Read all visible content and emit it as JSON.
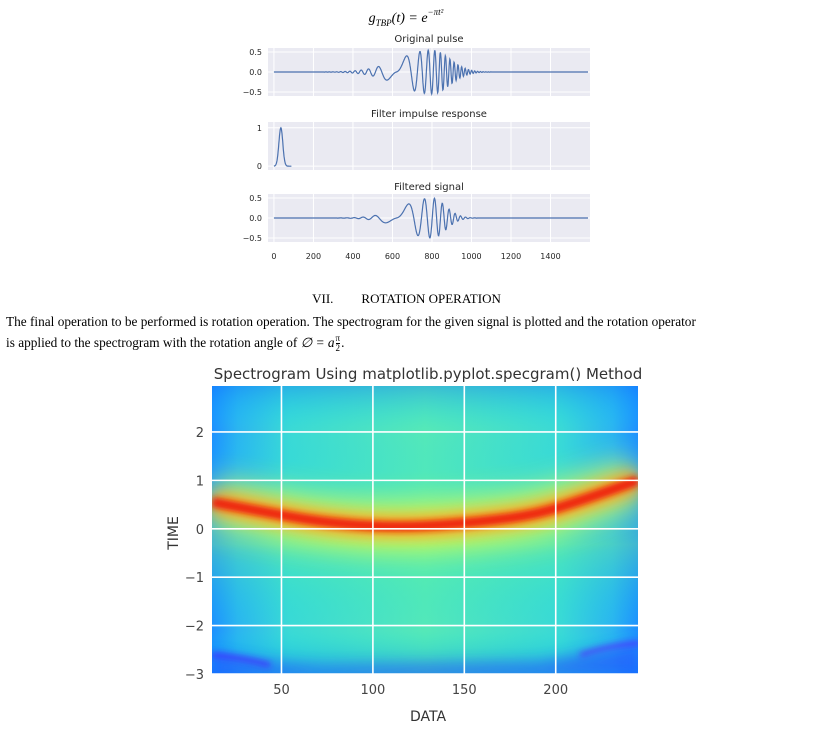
{
  "figure1": {
    "formula": {
      "lhs": "g",
      "subscript": "TBP",
      "arg": "(t) = e",
      "exponent": "−πt²"
    },
    "panels": [
      {
        "title": "Original pulse",
        "yticks": [
          "0.5",
          "0.0",
          "−0.5"
        ],
        "ytick_values": [
          0.5,
          0.0,
          -0.5
        ],
        "ylim": [
          -0.6,
          0.6
        ]
      },
      {
        "title": "Filter impulse response",
        "yticks": [
          "1",
          "0"
        ],
        "ytick_values": [
          1,
          0
        ],
        "ylim": [
          -0.1,
          1.15
        ]
      },
      {
        "title": "Filtered signal",
        "yticks": [
          "0.5",
          "0.0",
          "−0.5"
        ],
        "ytick_values": [
          0.5,
          0.0,
          -0.5
        ],
        "ylim": [
          -0.6,
          0.6
        ]
      }
    ],
    "xticks": [
      "0",
      "200",
      "400",
      "600",
      "800",
      "1000",
      "1200",
      "1400"
    ],
    "xtick_values": [
      0,
      200,
      400,
      600,
      800,
      1000,
      1200,
      1400
    ],
    "xlim": [
      -30,
      1600
    ],
    "line_color": "#4c72b0",
    "panel_bg": "#eaeaf2"
  },
  "section": {
    "number": "VII.",
    "title": "ROTATION OPERATION"
  },
  "paragraph": {
    "line1": "The final operation to be performed is rotation operation. The spectrogram for the given signal is plotted and the rotation operator",
    "line2": "is applied to the spectrogram with the rotation angle of",
    "angle_expr": "∅ = a",
    "frac_num": "π",
    "frac_den": "2",
    "end": "."
  },
  "chart_data": {
    "type": "heatmap",
    "title": "Spectrogram Using matplotlib.pyplot.specgram() Method",
    "xlabel": "DATA",
    "ylabel": "TIME",
    "xticks": [
      50,
      100,
      150,
      200
    ],
    "xtick_labels": [
      "50",
      "100",
      "150",
      "200"
    ],
    "yticks": [
      2,
      1,
      0,
      -1,
      -2,
      -3
    ],
    "ytick_labels": [
      "2",
      "1",
      "0",
      "−1",
      "−2",
      "−3"
    ],
    "xlim": [
      12,
      245
    ],
    "ylim": [
      -3,
      2.95
    ],
    "grid": true,
    "colormap": "jet",
    "ridge": [
      {
        "x": 12,
        "y": 0.55
      },
      {
        "x": 40,
        "y": 0.35
      },
      {
        "x": 70,
        "y": 0.15
      },
      {
        "x": 100,
        "y": 0.05
      },
      {
        "x": 128,
        "y": 0.05
      },
      {
        "x": 160,
        "y": 0.15
      },
      {
        "x": 190,
        "y": 0.3
      },
      {
        "x": 215,
        "y": 0.6
      },
      {
        "x": 245,
        "y": 1.0
      }
    ]
  }
}
